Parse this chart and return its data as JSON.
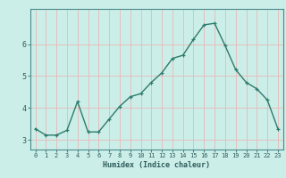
{
  "x": [
    0,
    1,
    2,
    3,
    4,
    5,
    6,
    7,
    8,
    9,
    10,
    11,
    12,
    13,
    14,
    15,
    16,
    17,
    18,
    19,
    20,
    21,
    22,
    23
  ],
  "y": [
    3.35,
    3.15,
    3.15,
    3.3,
    4.2,
    3.25,
    3.25,
    3.65,
    4.05,
    4.35,
    4.45,
    4.8,
    5.1,
    5.55,
    5.65,
    6.15,
    6.6,
    6.65,
    5.95,
    5.2,
    4.8,
    4.6,
    4.25,
    3.35
  ],
  "line_color": "#2d7b6b",
  "marker": "+",
  "bg_color": "#cceee8",
  "grid_color": "#e8b8b8",
  "xlabel": "Humidex (Indice chaleur)",
  "xlim": [
    -0.5,
    23.5
  ],
  "ylim": [
    2.7,
    7.1
  ],
  "yticks": [
    3,
    4,
    5,
    6
  ],
  "xticks": [
    0,
    1,
    2,
    3,
    4,
    5,
    6,
    7,
    8,
    9,
    10,
    11,
    12,
    13,
    14,
    15,
    16,
    17,
    18,
    19,
    20,
    21,
    22,
    23
  ],
  "font_color": "#2d5c5c",
  "axis_color": "#4a8a8a",
  "xlabel_fontsize": 6.0,
  "tick_fontsize": 5.0,
  "ytick_fontsize": 6.0
}
